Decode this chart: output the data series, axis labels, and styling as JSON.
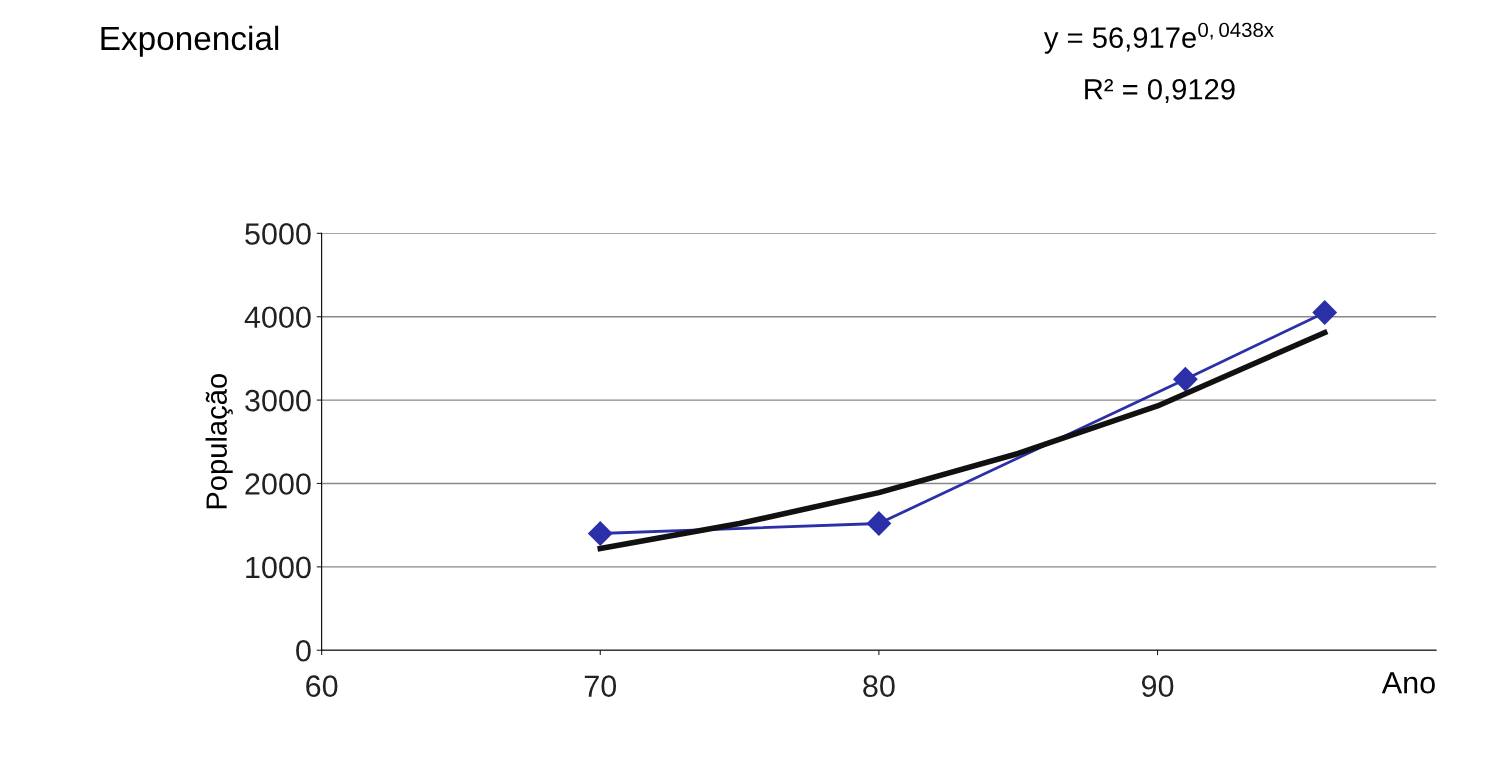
{
  "chart_data": {
    "type": "line",
    "title": "Exponencial",
    "xlabel": "Ano",
    "ylabel": "População",
    "annotations": [
      "y = 56,917e$^{0,0438x}$",
      "R² = 0,9129"
    ],
    "x": [
      70,
      80,
      91,
      96
    ],
    "series": [
      {
        "color": "#2b2fa8",
        "values": [
          1400,
          1520,
          3250,
          4050
        ],
        "marker": "diamond"
      },
      {
        "type": "line",
        "color": "#111111",
        "x": [
          70,
          75,
          80,
          85,
          90,
          96
        ],
        "values": [
          1220,
          1520,
          1890,
          2360,
          2930,
          3810
        ],
        "marker": "none"
      }
    ],
    "xlim": [
      60,
      100
    ],
    "xticks": [
      60,
      70,
      80,
      90
    ],
    "ylim": [
      0,
      5000
    ],
    "yticks": [
      0,
      1000,
      2000,
      3000,
      4000,
      5000
    ],
    "grid": "y",
    "legend": false
  }
}
